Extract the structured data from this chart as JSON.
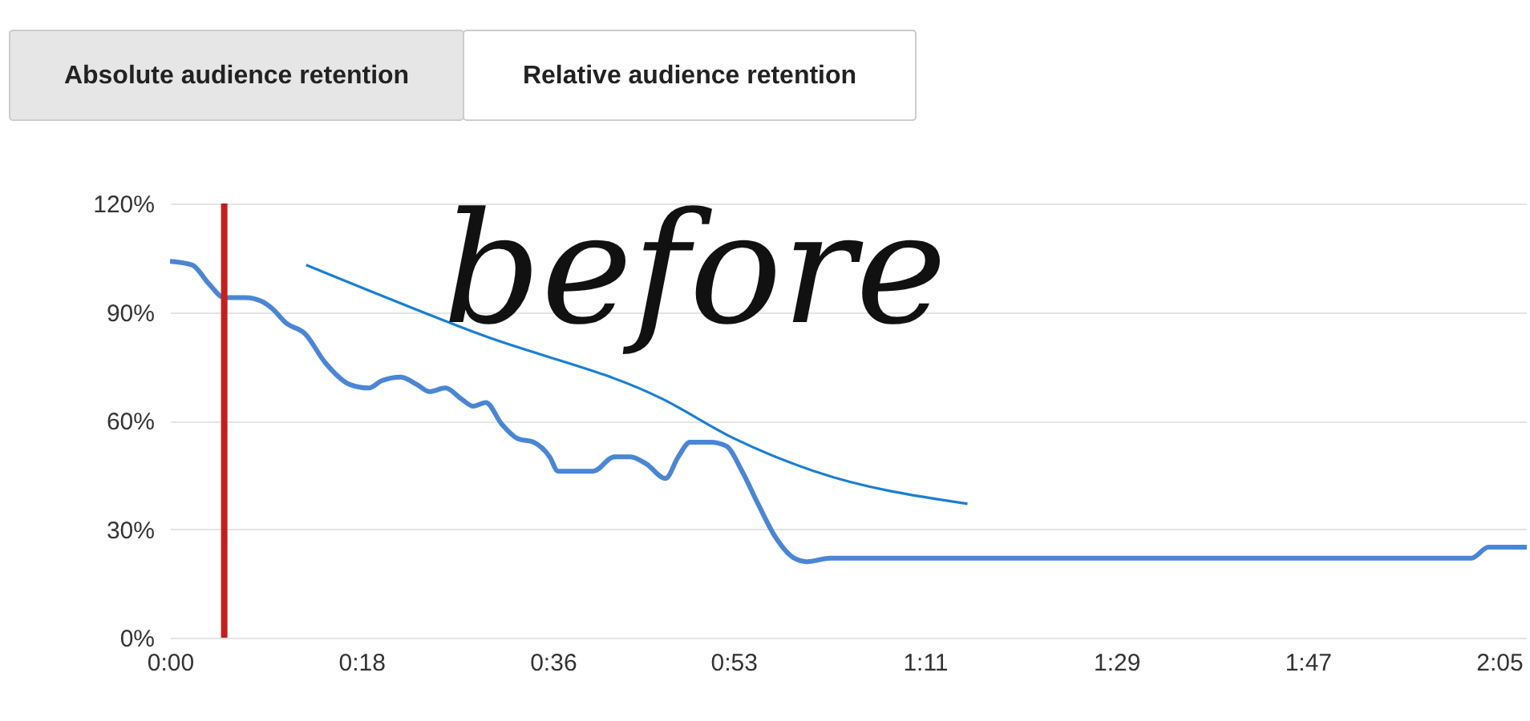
{
  "chart_data": {
    "type": "line",
    "annotations": [
      "Absolute audience retention",
      "Relative audience retention",
      "before"
    ],
    "series": [
      {
        "color": "#4a86d4",
        "x": [
          0,
          2.1,
          3.6,
          5.1,
          7.1,
          8.6,
          9.6,
          10.9,
          12.7,
          14.6,
          16.9,
          18.7,
          19.9,
          21.7,
          23.2,
          24.4,
          25.9,
          27.4,
          28.5,
          29.7,
          31.2,
          32.7,
          34.2,
          35.7,
          36.5,
          38.0,
          39.8,
          41.8,
          43.3,
          44.8,
          46.6,
          47.8,
          48.9,
          50.8,
          52.3,
          53.8,
          55.3,
          56.9,
          58.7,
          59.9,
          62.1,
          89.3,
          122.4,
          124.0,
          127.6
        ],
        "values": [
          104,
          103,
          98,
          94,
          94,
          93,
          91,
          87,
          84,
          76,
          70,
          69,
          71,
          72,
          70,
          68,
          69,
          66,
          64,
          65,
          59,
          55,
          54,
          50,
          46,
          46,
          46,
          50,
          50,
          48,
          44,
          50,
          54,
          54,
          53,
          46,
          37,
          28,
          22,
          21,
          22,
          22,
          22,
          25,
          25
        ]
      },
      {
        "color": "#1a7fd4",
        "x": [
          12.8,
          29.0,
          46.3,
          53.1,
          60.6,
          75.0
        ],
        "values": [
          103,
          84,
          66,
          55,
          46,
          37
        ]
      }
    ],
    "xlim": [
      0,
      127.6
    ],
    "xticks": [
      {
        "value": 0,
        "label": "0:00"
      },
      {
        "value": 18,
        "label": "0:18"
      },
      {
        "value": 36,
        "label": "0:36"
      },
      {
        "value": 53,
        "label": "0:53"
      },
      {
        "value": 71,
        "label": "1:11"
      },
      {
        "value": 89,
        "label": "1:29"
      },
      {
        "value": 107,
        "label": "1:47"
      },
      {
        "value": 125,
        "label": "2:05"
      }
    ],
    "ylim": [
      0,
      120
    ],
    "yticks": [
      {
        "value": 0,
        "label": "0%"
      },
      {
        "value": 30,
        "label": "30%"
      },
      {
        "value": 60,
        "label": "60%"
      },
      {
        "value": 90,
        "label": "90%"
      },
      {
        "value": 120,
        "label": "120%"
      }
    ],
    "grid": "y",
    "ref_lines": [
      {
        "axis": "x",
        "value": 5.1,
        "color": "#c41e1e"
      }
    ]
  }
}
